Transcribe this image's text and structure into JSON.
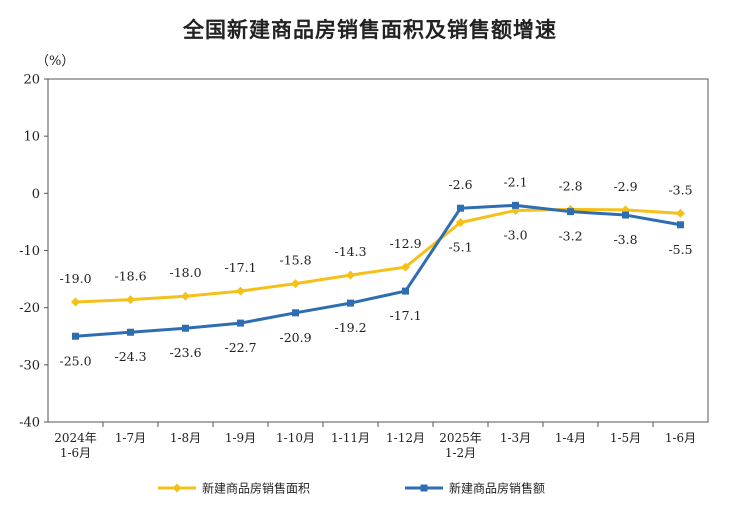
{
  "chart_data": {
    "type": "line",
    "title": "全国新建商品房销售面积及销售额增速",
    "unit": "（%）",
    "ylim": [
      -40,
      20
    ],
    "yticks": [
      "20",
      "10",
      "0",
      "-10",
      "-20",
      "-30",
      "-40"
    ],
    "categories": [
      [
        "2024年",
        "1-6月"
      ],
      [
        "1-7月"
      ],
      [
        "1-8月"
      ],
      [
        "1-9月"
      ],
      [
        "1-10月"
      ],
      [
        "1-11月"
      ],
      [
        "1-12月"
      ],
      [
        "2025年",
        "1-2月"
      ],
      [
        "1-3月"
      ],
      [
        "1-4月"
      ],
      [
        "1-5月"
      ],
      [
        "1-6月"
      ]
    ],
    "grid": false,
    "legend_position": "bottom",
    "series": [
      {
        "name": "新建商品房销售面积",
        "color": "#f5c018",
        "values": [
          -19.0,
          -18.6,
          -18.0,
          -17.1,
          -15.8,
          -14.3,
          -12.9,
          -5.1,
          -3.0,
          -2.8,
          -2.9,
          -3.5
        ],
        "labels": [
          "-19.0",
          "-18.6",
          "-18.0",
          "-17.1",
          "-15.8",
          "-14.3",
          "-12.9",
          "-5.1",
          "-3.0",
          "-2.8",
          "-2.9",
          "-3.5"
        ]
      },
      {
        "name": "新建商品房销售额",
        "color": "#2f6db3",
        "values": [
          -25.0,
          -24.3,
          -23.6,
          -22.7,
          -20.9,
          -19.2,
          -17.1,
          -2.6,
          -2.1,
          -3.2,
          -3.8,
          -5.5
        ],
        "labels": [
          "-25.0",
          "-24.3",
          "-23.6",
          "-22.7",
          "-20.9",
          "-19.2",
          "-17.1",
          "-2.6",
          "-2.1",
          "-3.2",
          "-3.8",
          "-5.5"
        ]
      }
    ]
  }
}
